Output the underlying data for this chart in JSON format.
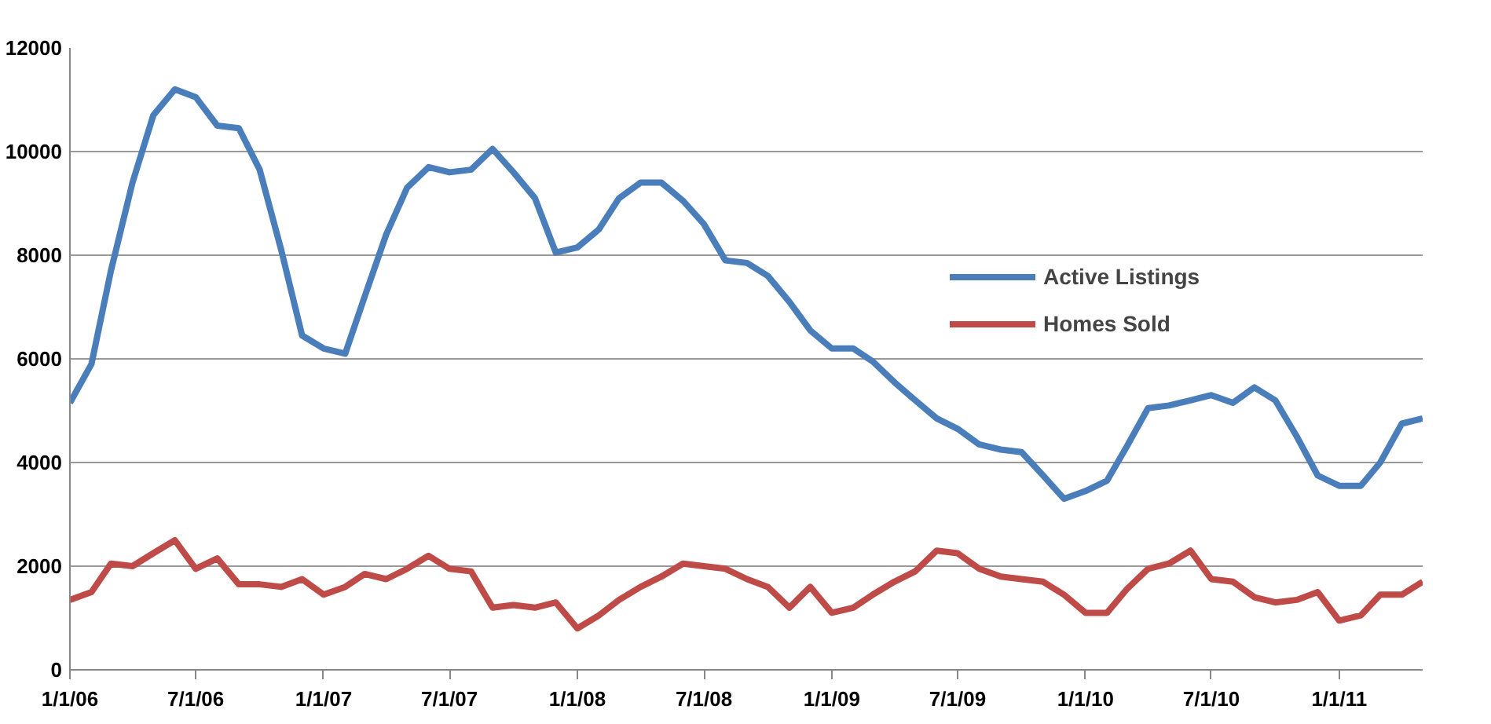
{
  "chart_data": {
    "type": "line",
    "x": [
      "2006-01",
      "2006-02",
      "2006-03",
      "2006-04",
      "2006-05",
      "2006-06",
      "2006-07",
      "2006-08",
      "2006-09",
      "2006-10",
      "2006-11",
      "2006-12",
      "2007-01",
      "2007-02",
      "2007-03",
      "2007-04",
      "2007-05",
      "2007-06",
      "2007-07",
      "2007-08",
      "2007-09",
      "2007-10",
      "2007-11",
      "2007-12",
      "2008-01",
      "2008-02",
      "2008-03",
      "2008-04",
      "2008-05",
      "2008-06",
      "2008-07",
      "2008-08",
      "2008-09",
      "2008-10",
      "2008-11",
      "2008-12",
      "2009-01",
      "2009-02",
      "2009-03",
      "2009-04",
      "2009-05",
      "2009-06",
      "2009-07",
      "2009-08",
      "2009-09",
      "2009-10",
      "2009-11",
      "2009-12",
      "2010-01",
      "2010-02",
      "2010-03",
      "2010-04",
      "2010-05",
      "2010-06",
      "2010-07",
      "2010-08",
      "2010-09",
      "2010-10",
      "2010-11",
      "2010-12",
      "2011-01",
      "2011-02",
      "2011-03",
      "2011-04",
      "2011-05"
    ],
    "series": [
      {
        "name": "Active Listings",
        "color": "#4a7ebb",
        "values": [
          5150,
          5900,
          7700,
          9400,
          10700,
          11200,
          11050,
          10500,
          10450,
          9650,
          8100,
          6450,
          6200,
          6100,
          7200,
          8400,
          9300,
          9700,
          9600,
          9650,
          10050,
          9600,
          9100,
          8050,
          8150,
          8500,
          9100,
          9400,
          9400,
          9050,
          8600,
          7900,
          7850,
          7600,
          7100,
          6550,
          6200,
          6200,
          5950,
          5550,
          5200,
          4850,
          4650,
          4350,
          4250,
          4200,
          3750,
          3300,
          3450,
          3650,
          4300,
          5050,
          5100,
          5200,
          5300,
          5150,
          5450,
          5200,
          4500,
          3750,
          3550,
          3550,
          4000,
          4750,
          4850
        ]
      },
      {
        "name": "Homes Sold",
        "color": "#be4b48",
        "values": [
          1350,
          1500,
          2050,
          2000,
          2250,
          2500,
          1950,
          2150,
          1650,
          1650,
          1600,
          1750,
          1450,
          1600,
          1850,
          1750,
          1950,
          2200,
          1950,
          1900,
          1200,
          1250,
          1200,
          1300,
          800,
          1050,
          1350,
          1600,
          1800,
          2050,
          2000,
          1950,
          1750,
          1600,
          1200,
          1600,
          1100,
          1200,
          1450,
          1700,
          1900,
          2300,
          2250,
          1950,
          1800,
          1750,
          1700,
          1450,
          1100,
          1100,
          1550,
          1950,
          2050,
          2300,
          1750,
          1700,
          1400,
          1300,
          1350,
          1500,
          950,
          1050,
          1450,
          1450,
          1700
        ]
      }
    ],
    "xlim": [
      "2006-01",
      "2011-05"
    ],
    "xticks": [
      {
        "value": "2006-01",
        "label": "1/1/06"
      },
      {
        "value": "2006-07",
        "label": "7/1/06"
      },
      {
        "value": "2007-01",
        "label": "1/1/07"
      },
      {
        "value": "2007-07",
        "label": "7/1/07"
      },
      {
        "value": "2008-01",
        "label": "1/1/08"
      },
      {
        "value": "2008-07",
        "label": "7/1/08"
      },
      {
        "value": "2009-01",
        "label": "1/1/09"
      },
      {
        "value": "2009-07",
        "label": "7/1/09"
      },
      {
        "value": "2010-01",
        "label": "1/1/10"
      },
      {
        "value": "2010-07",
        "label": "7/1/10"
      },
      {
        "value": "2011-01",
        "label": "1/1/11"
      }
    ],
    "ylim": [
      0,
      12000
    ],
    "yticks": [
      0,
      2000,
      4000,
      6000,
      8000,
      10000,
      12000
    ],
    "grid": "y",
    "legend": "right",
    "line_style": "solid"
  }
}
